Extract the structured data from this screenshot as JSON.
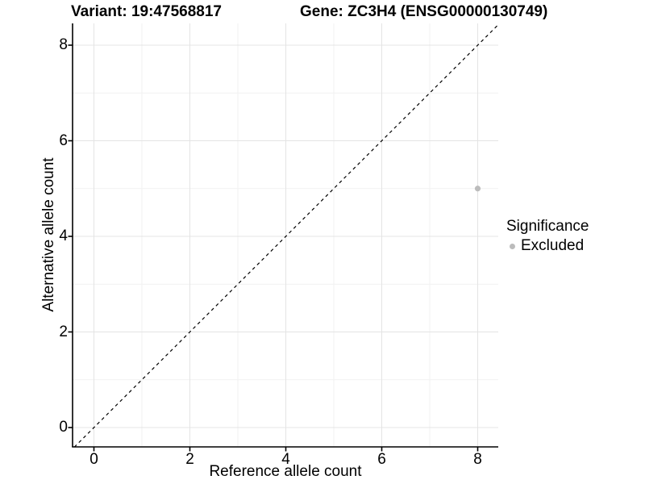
{
  "figure": {
    "background": "#ffffff"
  },
  "chart_data": {
    "type": "scatter",
    "titles": {
      "left": "Variant: 19:47568817",
      "right": "Gene: ZC3H4 (ENSG00000130749)"
    },
    "xlabel": "Reference allele count",
    "ylabel": "Alternative allele count",
    "xlim": [
      -0.4,
      8.4
    ],
    "ylim": [
      -0.4,
      8.4
    ],
    "xticks": [
      0,
      2,
      4,
      6,
      8
    ],
    "yticks": [
      0,
      2,
      4,
      6,
      8
    ],
    "xminor": [
      1,
      3,
      5,
      7
    ],
    "yminor": [
      1,
      3,
      5,
      7
    ],
    "grid": "major and minor gridlines on white panel",
    "points": [
      {
        "x": 8,
        "y": 5,
        "significance": "Excluded",
        "color": "#bcbcbc"
      }
    ],
    "reference_line": {
      "slope": 1,
      "intercept": 0,
      "style": "dashed",
      "color": "#000000"
    },
    "legend": {
      "title": "Significance",
      "position": "right",
      "entries": [
        {
          "label": "Excluded",
          "color": "#bcbcbc",
          "marker": "circle"
        }
      ]
    },
    "colors": {
      "grid_major": "#e4e4e4",
      "grid_minor": "#f1f1f1",
      "axis": "#000000",
      "text": "#000000"
    }
  }
}
